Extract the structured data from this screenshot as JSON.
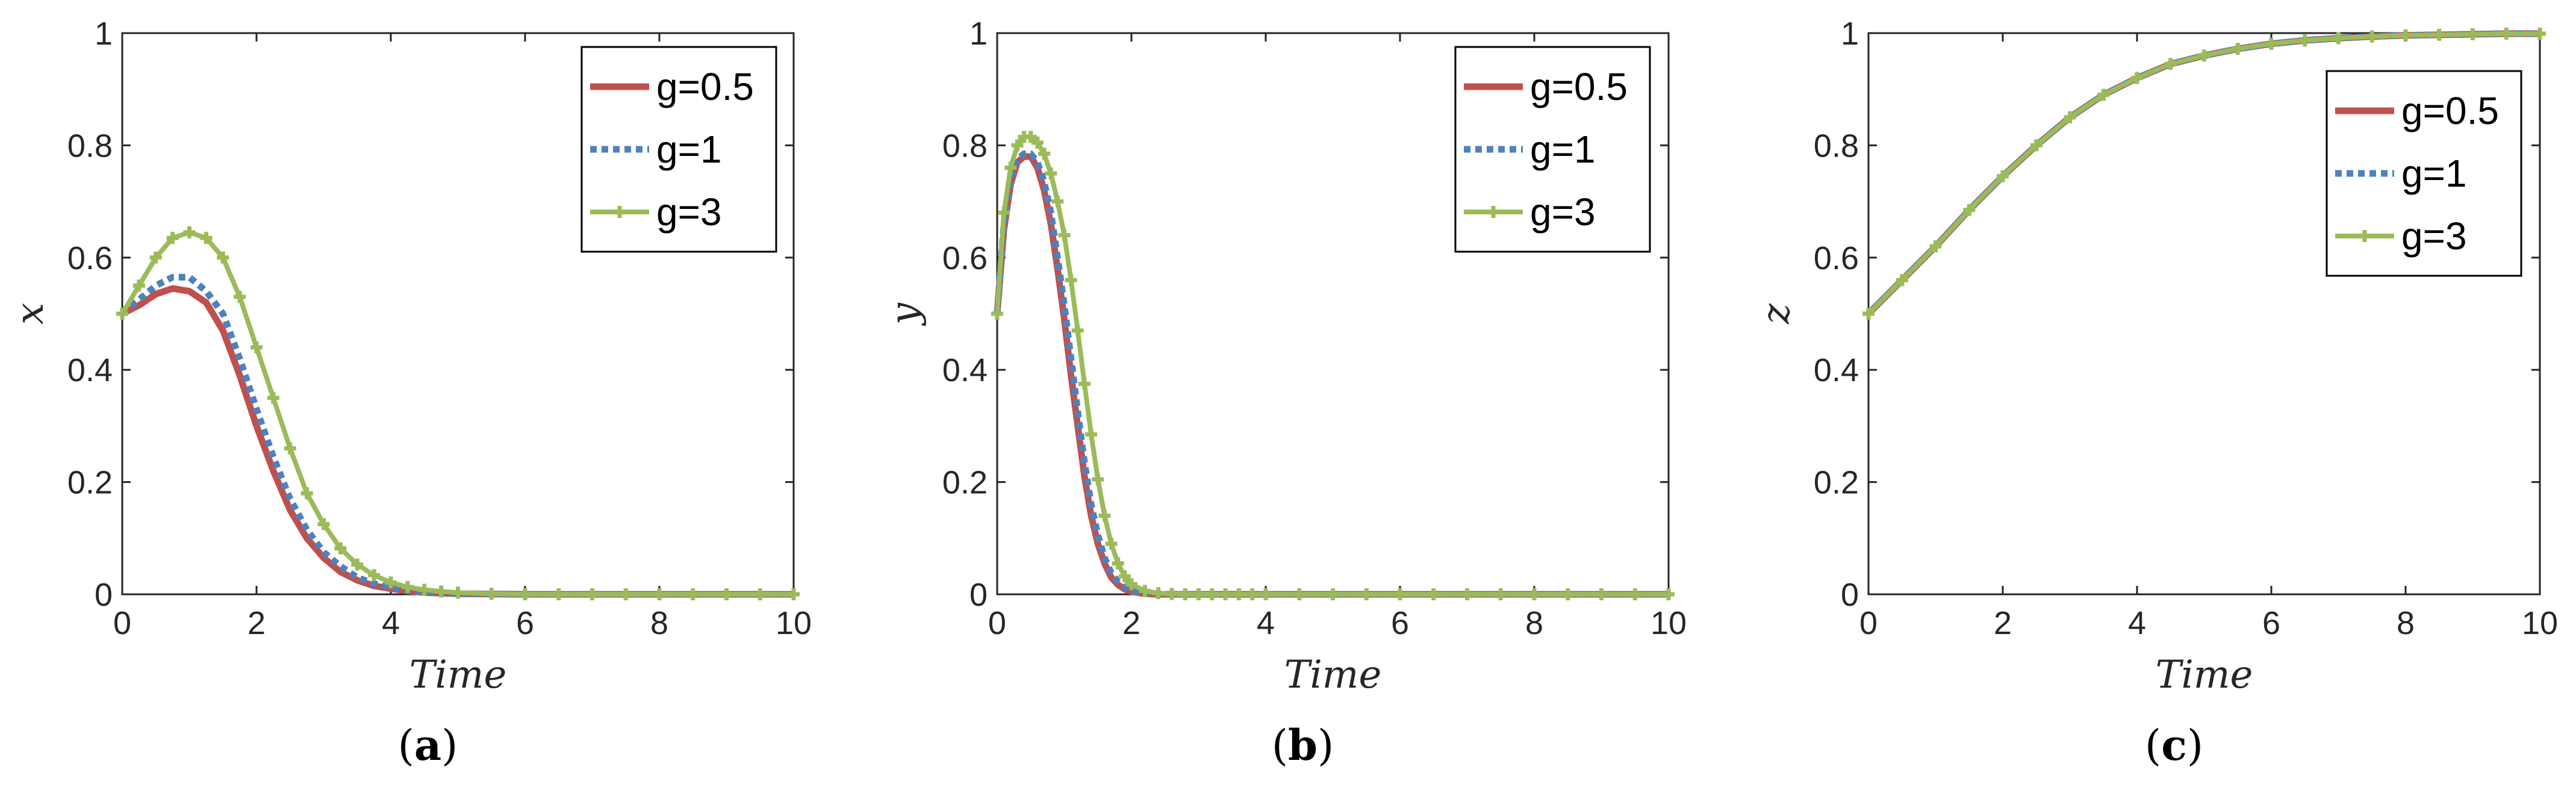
{
  "colors": {
    "g05": "#c0504d",
    "g1": "#4f81bd",
    "g3": "#9bbb59",
    "axis": "#262626"
  },
  "chart_data": [
    {
      "type": "line",
      "panel": "(a)",
      "caption_letter": "a",
      "xlabel": "Time",
      "ylabel": "x",
      "xlim": [
        0,
        10
      ],
      "ylim": [
        0,
        1
      ],
      "xticks": [
        "0",
        "2",
        "4",
        "6",
        "8",
        "10"
      ],
      "yticks": [
        "0",
        "0.2",
        "0.4",
        "0.6",
        "0.8",
        "1"
      ],
      "legend": [
        "g=0.5",
        "g=1",
        "g=3"
      ],
      "legend_position": "top-right",
      "x": [
        0,
        0.25,
        0.5,
        0.75,
        1,
        1.25,
        1.5,
        1.75,
        2,
        2.25,
        2.5,
        2.75,
        3,
        3.25,
        3.5,
        3.75,
        4,
        4.25,
        4.5,
        4.75,
        5,
        5.5,
        6,
        6.5,
        7,
        7.5,
        8,
        8.5,
        9,
        9.5,
        10
      ],
      "series": [
        {
          "name": "g=0.5",
          "values": [
            0.5,
            0.515,
            0.535,
            0.545,
            0.54,
            0.52,
            0.47,
            0.39,
            0.3,
            0.22,
            0.15,
            0.1,
            0.065,
            0.04,
            0.025,
            0.015,
            0.01,
            0.006,
            0.003,
            0.002,
            0.001,
            0.0005,
            0,
            0,
            0,
            0,
            0,
            0,
            0,
            0,
            0
          ]
        },
        {
          "name": "g=1",
          "values": [
            0.5,
            0.525,
            0.55,
            0.565,
            0.565,
            0.54,
            0.5,
            0.42,
            0.33,
            0.245,
            0.17,
            0.115,
            0.075,
            0.05,
            0.03,
            0.019,
            0.012,
            0.007,
            0.004,
            0.002,
            0.001,
            0.0005,
            0,
            0,
            0,
            0,
            0,
            0,
            0,
            0,
            0
          ]
        },
        {
          "name": "g=3",
          "values": [
            0.5,
            0.55,
            0.6,
            0.635,
            0.645,
            0.635,
            0.6,
            0.53,
            0.44,
            0.35,
            0.26,
            0.18,
            0.125,
            0.082,
            0.053,
            0.034,
            0.021,
            0.013,
            0.008,
            0.005,
            0.003,
            0.001,
            0,
            0,
            0,
            0,
            0,
            0,
            0,
            0,
            0
          ]
        }
      ]
    },
    {
      "type": "line",
      "panel": "(b)",
      "caption_letter": "b",
      "xlabel": "Time",
      "ylabel": "y",
      "xlim": [
        0,
        10
      ],
      "ylim": [
        0,
        1
      ],
      "xticks": [
        "0",
        "2",
        "4",
        "6",
        "8",
        "10"
      ],
      "yticks": [
        "0",
        "0.2",
        "0.4",
        "0.6",
        "0.8",
        "1"
      ],
      "legend": [
        "g=0.5",
        "g=1",
        "g=3"
      ],
      "legend_position": "top-right",
      "x": [
        0,
        0.1,
        0.2,
        0.3,
        0.4,
        0.5,
        0.6,
        0.7,
        0.8,
        0.9,
        1,
        1.1,
        1.2,
        1.3,
        1.4,
        1.5,
        1.6,
        1.7,
        1.8,
        1.9,
        2,
        2.2,
        2.4,
        2.6,
        2.8,
        3,
        3.2,
        3.4,
        3.6,
        3.8,
        4,
        4.5,
        5,
        5.5,
        6,
        6.5,
        7,
        7.5,
        8,
        8.5,
        9,
        9.5,
        10
      ],
      "series": [
        {
          "name": "g=0.5",
          "values": [
            0.5,
            0.65,
            0.73,
            0.77,
            0.78,
            0.78,
            0.76,
            0.72,
            0.66,
            0.58,
            0.49,
            0.39,
            0.3,
            0.21,
            0.14,
            0.09,
            0.055,
            0.03,
            0.017,
            0.009,
            0.005,
            0.001,
            0,
            0,
            0,
            0,
            0,
            0,
            0,
            0,
            0,
            0,
            0,
            0,
            0,
            0,
            0,
            0,
            0,
            0,
            0,
            0,
            0
          ]
        },
        {
          "name": "g=1",
          "values": [
            0.5,
            0.66,
            0.74,
            0.775,
            0.785,
            0.785,
            0.77,
            0.735,
            0.68,
            0.6,
            0.515,
            0.42,
            0.325,
            0.235,
            0.16,
            0.105,
            0.065,
            0.038,
            0.022,
            0.012,
            0.007,
            0.002,
            0.0005,
            0,
            0,
            0,
            0,
            0,
            0,
            0,
            0,
            0,
            0,
            0,
            0,
            0,
            0,
            0,
            0,
            0,
            0,
            0,
            0
          ]
        },
        {
          "name": "g=3",
          "values": [
            0.5,
            0.68,
            0.76,
            0.8,
            0.815,
            0.815,
            0.805,
            0.785,
            0.75,
            0.7,
            0.64,
            0.56,
            0.47,
            0.375,
            0.285,
            0.205,
            0.14,
            0.09,
            0.055,
            0.032,
            0.018,
            0.006,
            0.002,
            0.0005,
            0,
            0,
            0,
            0,
            0,
            0,
            0,
            0,
            0,
            0,
            0,
            0,
            0,
            0,
            0,
            0,
            0,
            0,
            0
          ]
        }
      ]
    },
    {
      "type": "line",
      "panel": "(c)",
      "caption_letter": "c",
      "xlabel": "Time",
      "ylabel": "z",
      "xlim": [
        0,
        10
      ],
      "ylim": [
        0,
        1
      ],
      "xticks": [
        "0",
        "2",
        "4",
        "6",
        "8",
        "10"
      ],
      "yticks": [
        "0",
        "0.2",
        "0.4",
        "0.6",
        "0.8",
        "1"
      ],
      "legend": [
        "g=0.5",
        "g=1",
        "g=3"
      ],
      "legend_position": "top-right",
      "x": [
        0,
        0.5,
        1,
        1.5,
        2,
        2.5,
        3,
        3.5,
        4,
        4.5,
        5,
        5.5,
        6,
        6.5,
        7,
        7.5,
        8,
        8.5,
        9,
        9.5,
        10
      ],
      "series": [
        {
          "name": "g=0.5",
          "values": [
            0.5,
            0.56,
            0.62,
            0.685,
            0.745,
            0.8,
            0.85,
            0.89,
            0.92,
            0.945,
            0.96,
            0.972,
            0.981,
            0.987,
            0.991,
            0.994,
            0.996,
            0.997,
            0.998,
            0.999,
            0.999
          ]
        },
        {
          "name": "g=1",
          "values": [
            0.5,
            0.56,
            0.62,
            0.685,
            0.745,
            0.8,
            0.85,
            0.89,
            0.92,
            0.945,
            0.96,
            0.972,
            0.981,
            0.987,
            0.991,
            0.994,
            0.996,
            0.997,
            0.998,
            0.999,
            0.999
          ]
        },
        {
          "name": "g=3",
          "values": [
            0.5,
            0.56,
            0.62,
            0.685,
            0.745,
            0.8,
            0.85,
            0.89,
            0.92,
            0.945,
            0.96,
            0.972,
            0.981,
            0.987,
            0.991,
            0.994,
            0.996,
            0.997,
            0.998,
            0.999,
            0.999
          ]
        }
      ]
    }
  ]
}
